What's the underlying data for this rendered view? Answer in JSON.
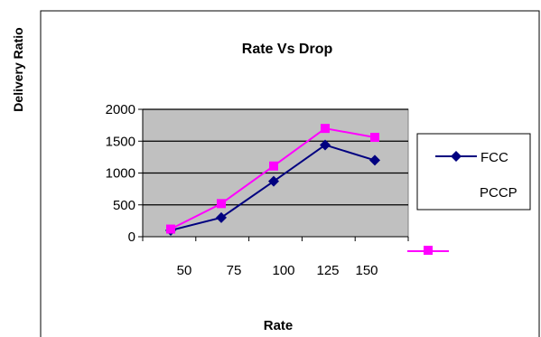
{
  "chart_data": {
    "type": "line",
    "title": "Rate Vs Drop",
    "xlabel": "Rate",
    "ylabel": "Delivery Ratio",
    "categories": [
      "50",
      "75",
      "100",
      "125",
      "150"
    ],
    "ylim": [
      0,
      2000
    ],
    "yticks": [
      0,
      500,
      1000,
      1500,
      2000
    ],
    "grid": "horizontal",
    "legend_position": "right",
    "plot_background": "#c0c0c0",
    "series": [
      {
        "name": "FCC",
        "values": [
          100,
          300,
          870,
          1440,
          1200
        ],
        "color": "#000080",
        "marker": "diamond"
      },
      {
        "name": "PCCP",
        "values": [
          120,
          520,
          1110,
          1700,
          1560
        ],
        "color": "#ff00ff",
        "marker": "square"
      }
    ]
  }
}
